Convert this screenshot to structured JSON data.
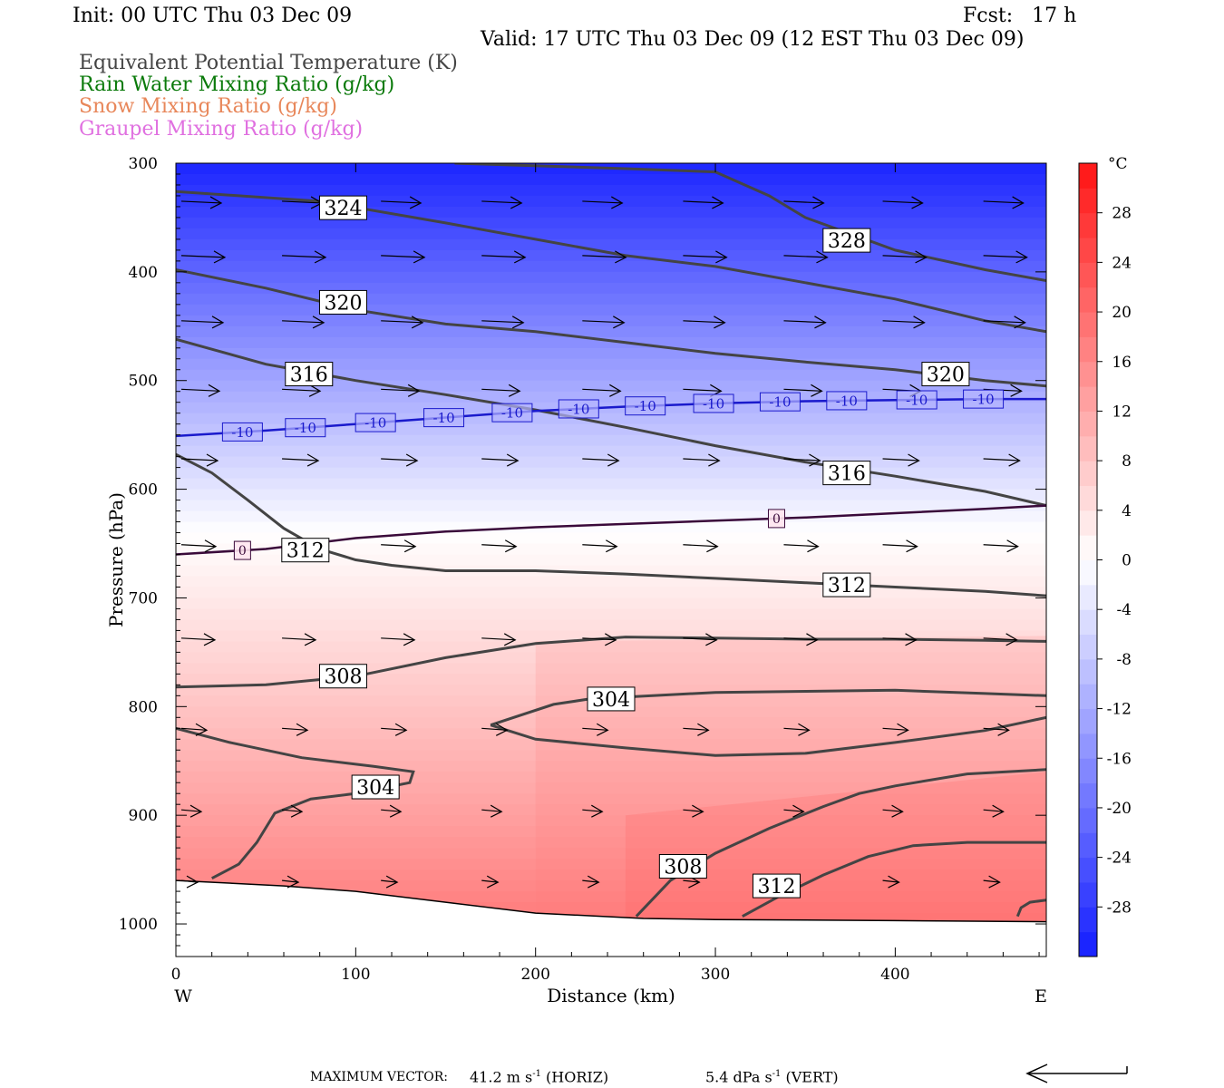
{
  "header": {
    "init": "Init: 00 UTC Thu 03 Dec 09",
    "fcst": "Fcst:   17 h",
    "valid": "Valid: 17 UTC Thu 03 Dec 09 (12 EST Thu 03 Dec 09)"
  },
  "legend": [
    {
      "label": "Equivalent Potential Temperature (K)",
      "color": "#444444"
    },
    {
      "label": "Rain Water Mixing Ratio (g/kg)",
      "color": "#0a7a0a"
    },
    {
      "label": "Snow Mixing Ratio (g/kg)",
      "color": "#e8875a"
    },
    {
      "label": "Graupel Mixing Ratio (g/kg)",
      "color": "#e070e0"
    }
  ],
  "footer": {
    "max_vector_label": "MAXIMUM VECTOR:",
    "horiz_value": "41.2 m s",
    "horiz_exp": "-1",
    "horiz_unit": " (HORIZ)",
    "vert_value": "5.4 dPa s",
    "vert_exp": "-1",
    "vert_unit": " (VERT)"
  },
  "chart_data": {
    "type": "contour",
    "xlabel": "Distance (km)",
    "ylabel": "Pressure (hPa)",
    "x_ticks": [
      0,
      100,
      200,
      300,
      400
    ],
    "y_ticks": [
      300,
      400,
      500,
      600,
      700,
      800,
      900,
      1000
    ],
    "xlim": [
      0,
      484
    ],
    "ylim": [
      1030,
      300
    ],
    "x_end_labels": {
      "left": "W",
      "right": "E"
    },
    "colorbar": {
      "unit": "°C",
      "ticks": [
        28,
        24,
        20,
        16,
        12,
        8,
        4,
        0,
        -4,
        -8,
        -12,
        -16,
        -20,
        -24,
        -28
      ],
      "range": [
        -32,
        32
      ]
    },
    "temperature_contours": [
      {
        "value": -10,
        "label": "-10",
        "color": "#1a1acc",
        "points": [
          [
            0,
            551
          ],
          [
            50,
            546
          ],
          [
            100,
            540
          ],
          [
            150,
            534
          ],
          [
            200,
            528
          ],
          [
            250,
            524
          ],
          [
            300,
            521
          ],
          [
            350,
            519
          ],
          [
            400,
            518
          ],
          [
            450,
            517
          ],
          [
            484,
            517
          ]
        ]
      },
      {
        "value": 0,
        "label": "0",
        "color": "#3a0a3a",
        "points": [
          [
            0,
            660
          ],
          [
            50,
            655
          ],
          [
            100,
            645
          ],
          [
            150,
            639
          ],
          [
            200,
            635
          ],
          [
            250,
            632
          ],
          [
            300,
            629
          ],
          [
            350,
            626
          ],
          [
            400,
            622
          ],
          [
            450,
            618
          ],
          [
            484,
            615
          ]
        ]
      }
    ],
    "theta_e_contours": [
      {
        "value": 328,
        "points": [
          [
            155,
            300
          ],
          [
            250,
            305
          ],
          [
            300,
            308
          ],
          [
            330,
            330
          ],
          [
            350,
            350
          ],
          [
            400,
            380
          ],
          [
            450,
            398
          ],
          [
            484,
            408
          ]
        ]
      },
      {
        "value": 324,
        "points": [
          [
            0,
            326
          ],
          [
            80,
            335
          ],
          [
            150,
            355
          ],
          [
            200,
            370
          ],
          [
            250,
            385
          ],
          [
            300,
            395
          ],
          [
            350,
            410
          ],
          [
            400,
            425
          ],
          [
            450,
            445
          ],
          [
            484,
            455
          ]
        ]
      },
      {
        "value": 320,
        "points": [
          [
            0,
            398
          ],
          [
            50,
            415
          ],
          [
            100,
            435
          ],
          [
            150,
            448
          ],
          [
            200,
            455
          ],
          [
            250,
            465
          ],
          [
            300,
            475
          ],
          [
            350,
            483
          ],
          [
            400,
            490
          ],
          [
            450,
            500
          ],
          [
            484,
            505
          ]
        ]
      },
      {
        "value": 316,
        "points": [
          [
            0,
            462
          ],
          [
            50,
            485
          ],
          [
            100,
            500
          ],
          [
            150,
            513
          ],
          [
            200,
            527
          ],
          [
            250,
            543
          ],
          [
            300,
            560
          ],
          [
            350,
            575
          ],
          [
            400,
            588
          ],
          [
            450,
            602
          ],
          [
            484,
            615
          ]
        ]
      },
      {
        "value": 312,
        "points": [
          [
            0,
            568
          ],
          [
            20,
            585
          ],
          [
            40,
            610
          ],
          [
            60,
            636
          ],
          [
            80,
            655
          ],
          [
            100,
            665
          ],
          [
            120,
            670
          ],
          [
            150,
            675
          ],
          [
            200,
            675
          ],
          [
            250,
            678
          ],
          [
            300,
            682
          ],
          [
            350,
            686
          ],
          [
            400,
            690
          ],
          [
            450,
            694
          ],
          [
            484,
            698
          ]
        ]
      },
      {
        "value": 308,
        "points": [
          [
            0,
            782
          ],
          [
            50,
            780
          ],
          [
            100,
            772
          ],
          [
            150,
            755
          ],
          [
            200,
            742
          ],
          [
            250,
            736
          ],
          [
            300,
            737
          ],
          [
            350,
            738
          ],
          [
            400,
            738
          ],
          [
            450,
            739
          ],
          [
            484,
            740
          ]
        ]
      },
      {
        "value": 304,
        "points": [
          [
            175,
            817
          ],
          [
            210,
            798
          ],
          [
            230,
            793
          ],
          [
            300,
            787
          ],
          [
            350,
            786
          ],
          [
            400,
            785
          ],
          [
            450,
            788
          ],
          [
            484,
            790
          ]
        ]
      },
      {
        "value": 304,
        "points": [
          [
            175,
            817
          ],
          [
            200,
            830
          ],
          [
            250,
            838
          ],
          [
            300,
            845
          ],
          [
            350,
            843
          ],
          [
            400,
            833
          ],
          [
            450,
            822
          ],
          [
            470,
            815
          ],
          [
            484,
            810
          ]
        ]
      },
      {
        "value": 304,
        "points": [
          [
            0,
            820
          ],
          [
            30,
            833
          ],
          [
            70,
            847
          ],
          [
            110,
            855
          ],
          [
            132,
            860
          ],
          [
            130,
            870
          ],
          [
            100,
            880
          ],
          [
            75,
            885
          ],
          [
            55,
            898
          ],
          [
            45,
            925
          ],
          [
            35,
            945
          ],
          [
            20,
            958
          ]
        ]
      },
      {
        "value": 308,
        "points": [
          [
            256,
            993
          ],
          [
            275,
            960
          ],
          [
            300,
            935
          ],
          [
            330,
            912
          ],
          [
            360,
            892
          ],
          [
            380,
            880
          ],
          [
            400,
            873
          ],
          [
            440,
            862
          ],
          [
            484,
            858
          ]
        ]
      },
      {
        "value": 312,
        "points": [
          [
            315,
            993
          ],
          [
            335,
            975
          ],
          [
            360,
            955
          ],
          [
            385,
            938
          ],
          [
            410,
            928
          ],
          [
            440,
            925
          ],
          [
            484,
            925
          ]
        ]
      },
      {
        "value": 312,
        "points": [
          [
            468,
            993
          ],
          [
            470,
            985
          ],
          [
            475,
            980
          ],
          [
            484,
            978
          ]
        ]
      }
    ],
    "contour_labels": [
      {
        "text": "328",
        "x": 373,
        "y": 371
      },
      {
        "text": "324",
        "x": 93,
        "y": 341
      },
      {
        "text": "320",
        "x": 93,
        "y": 428
      },
      {
        "text": "320",
        "x": 428,
        "y": 494
      },
      {
        "text": "316",
        "x": 74,
        "y": 494
      },
      {
        "text": "316",
        "x": 373,
        "y": 585
      },
      {
        "text": "312",
        "x": 72,
        "y": 656
      },
      {
        "text": "312",
        "x": 373,
        "y": 688
      },
      {
        "text": "308",
        "x": 93,
        "y": 772
      },
      {
        "text": "304",
        "x": 242,
        "y": 793
      },
      {
        "text": "304",
        "x": 111,
        "y": 874
      },
      {
        "text": "308",
        "x": 282,
        "y": 947
      },
      {
        "text": "312",
        "x": 334,
        "y": 965
      }
    ],
    "minus10_label_x": [
      37,
      72,
      111,
      149,
      187,
      224,
      261,
      299,
      336,
      373,
      412,
      449
    ],
    "zero_label_x": [
      37,
      334
    ],
    "terrain": [
      [
        0,
        960
      ],
      [
        60,
        965
      ],
      [
        100,
        970
      ],
      [
        150,
        980
      ],
      [
        200,
        990
      ],
      [
        260,
        995
      ],
      [
        300,
        996
      ],
      [
        400,
        997
      ],
      [
        484,
        998
      ]
    ],
    "wind_vectors": [
      {
        "p": 335,
        "xs": [
          0,
          56,
          111,
          167,
          223,
          279,
          335,
          390,
          446
        ],
        "len": 44
      },
      {
        "p": 385,
        "xs": [
          0,
          56,
          111,
          167,
          223,
          279,
          335,
          390,
          446
        ],
        "len": 48
      },
      {
        "p": 445,
        "xs": [
          0,
          56,
          111,
          167,
          223,
          279,
          335,
          390,
          446
        ],
        "len": 46
      },
      {
        "p": 508,
        "xs": [
          0,
          56,
          111,
          167,
          223,
          279,
          335,
          390,
          446
        ],
        "len": 42
      },
      {
        "p": 572,
        "xs": [
          0,
          56,
          111,
          167,
          223,
          279,
          335,
          390,
          446
        ],
        "len": 40
      },
      {
        "p": 651,
        "xs": [
          0,
          56,
          111,
          167,
          223,
          279,
          335,
          390,
          446
        ],
        "len": 38
      },
      {
        "p": 737,
        "xs": [
          0,
          56,
          111,
          167,
          223,
          279,
          335,
          390,
          446
        ],
        "len": 37
      },
      {
        "p": 820,
        "xs": [
          0,
          56,
          111,
          167,
          223,
          279,
          335,
          390,
          446
        ],
        "len": 28
      },
      {
        "p": 895,
        "xs": [
          0,
          56,
          111,
          167,
          223,
          279,
          335,
          390,
          446
        ],
        "len": 22
      },
      {
        "p": 960,
        "xs": [
          0,
          56,
          111,
          167,
          223,
          279,
          335,
          390,
          446
        ],
        "len": 18
      }
    ]
  }
}
